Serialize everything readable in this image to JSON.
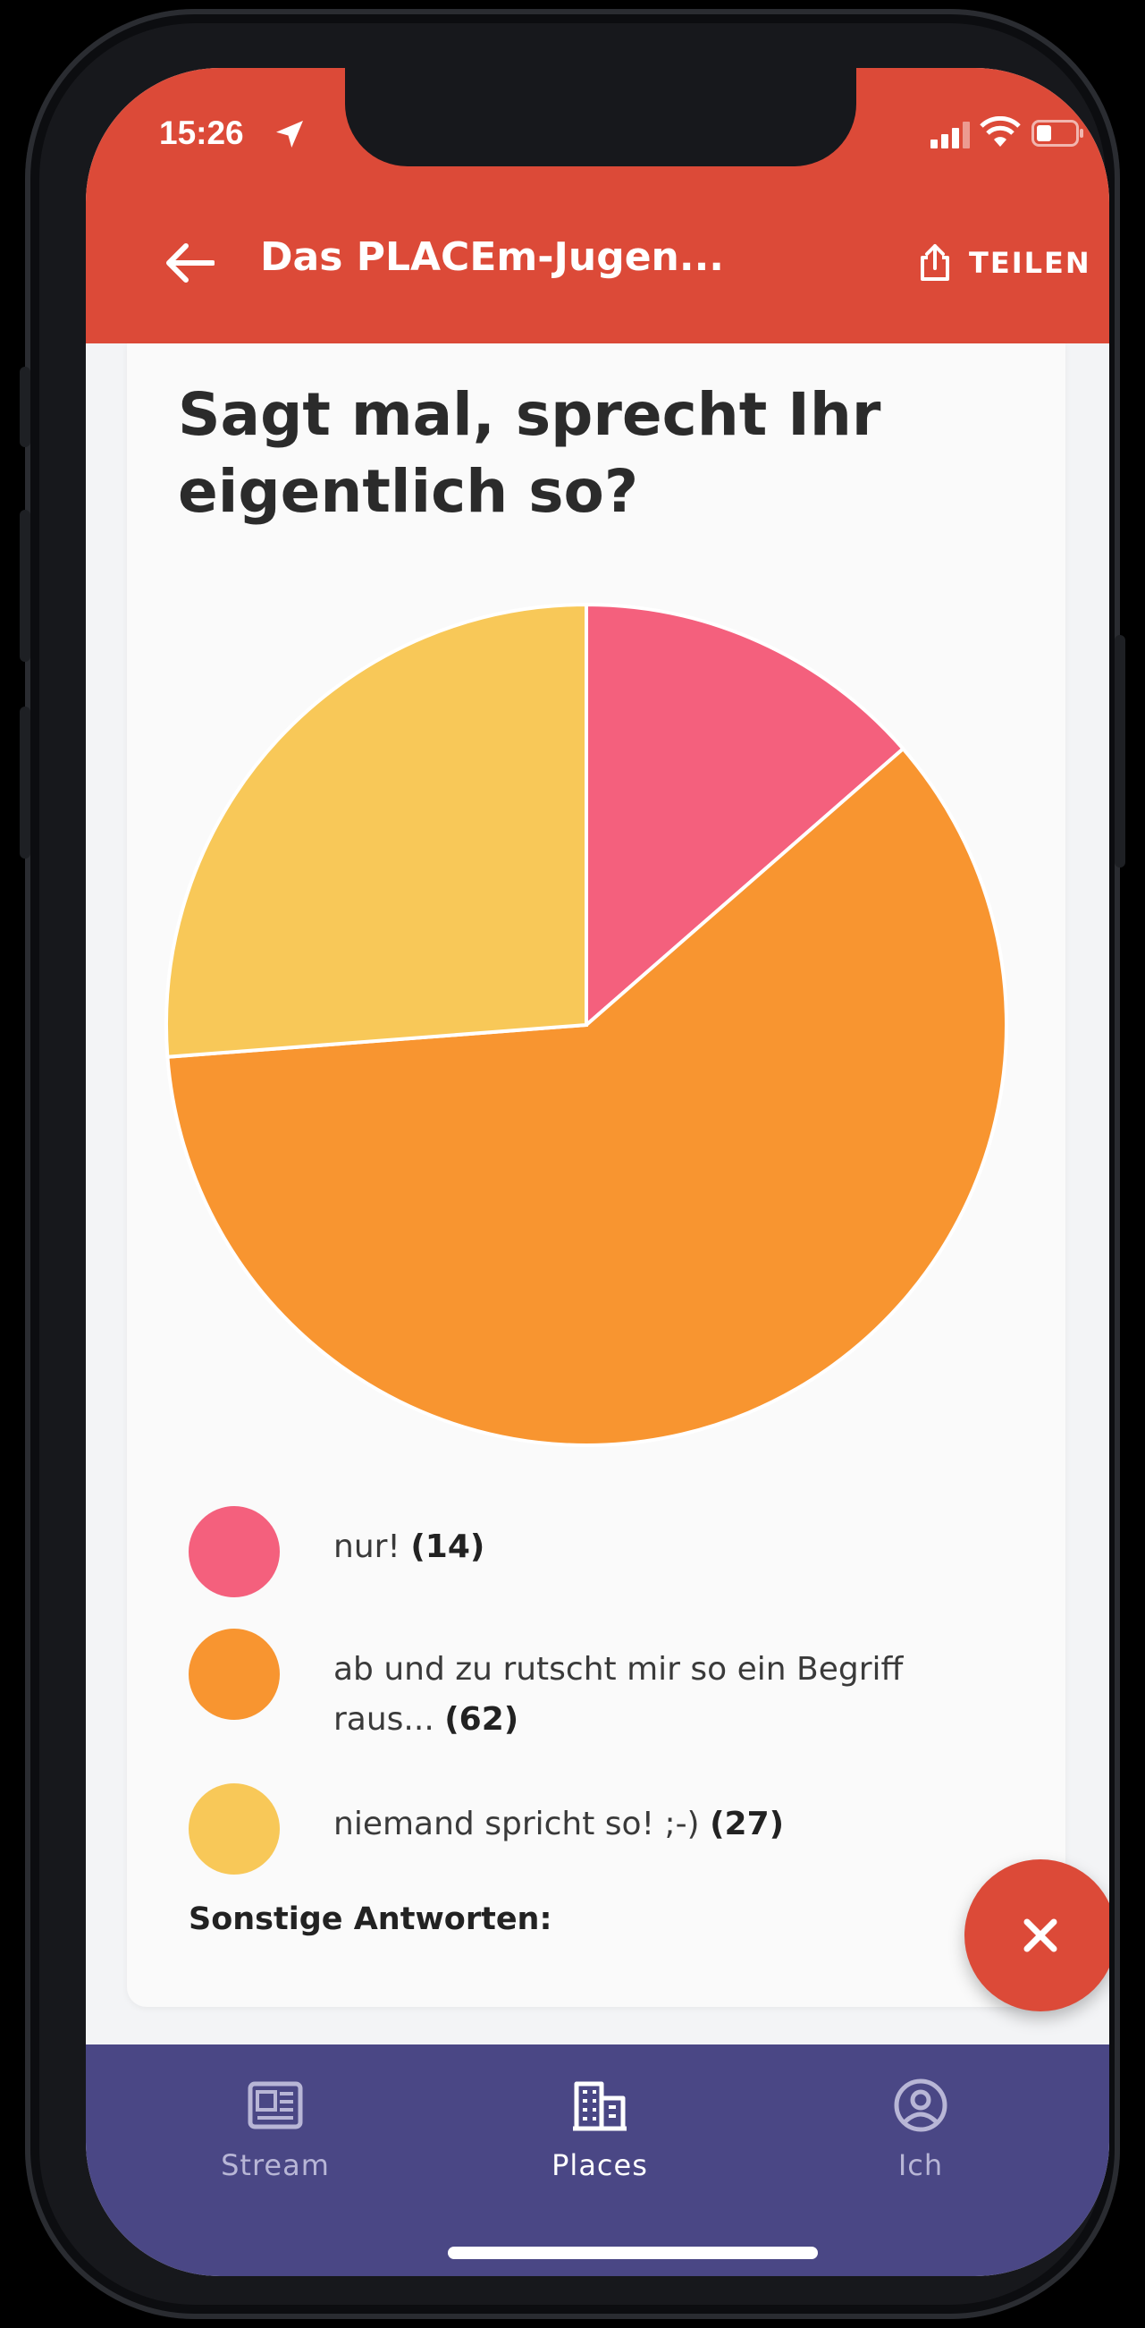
{
  "status_bar": {
    "time": "15:26"
  },
  "header": {
    "title": "Das PLACEm-Jugen...",
    "share_label": "TEILEN"
  },
  "poll": {
    "question": "Sagt mal, sprecht Ihr eigentlich so?",
    "other_answers_label": "Sonstige Antworten:",
    "options": [
      {
        "text": "nur!",
        "count": "(14)",
        "color": "#f4607d"
      },
      {
        "text": "ab und zu rutscht mir so ein Begriff raus...",
        "count": "(62)",
        "color": "#f89530"
      },
      {
        "text": "niemand spricht so! ;-)",
        "count": "(27)",
        "color": "#f8c858"
      }
    ]
  },
  "chart_data": {
    "type": "pie",
    "categories": [
      "nur!",
      "ab und zu rutscht mir so ein Begriff raus...",
      "niemand spricht so! ;-)"
    ],
    "values": [
      14,
      62,
      27
    ],
    "colors": [
      "#f4607d",
      "#f89530",
      "#f8c858"
    ],
    "title": "Sagt mal, sprecht Ihr eigentlich so?"
  },
  "bottom_nav": {
    "items": [
      {
        "label": "Stream",
        "icon": "newspaper-icon",
        "active": false
      },
      {
        "label": "Places",
        "icon": "buildings-icon",
        "active": true
      },
      {
        "label": "Ich",
        "icon": "user-circle-icon",
        "active": false
      }
    ]
  },
  "colors": {
    "header_bg": "#dc4a38",
    "nav_bg": "#4a4785",
    "nav_active": "#ffffff",
    "nav_inactive": "#b8b6d6",
    "fab_bg": "#dc4a38"
  }
}
